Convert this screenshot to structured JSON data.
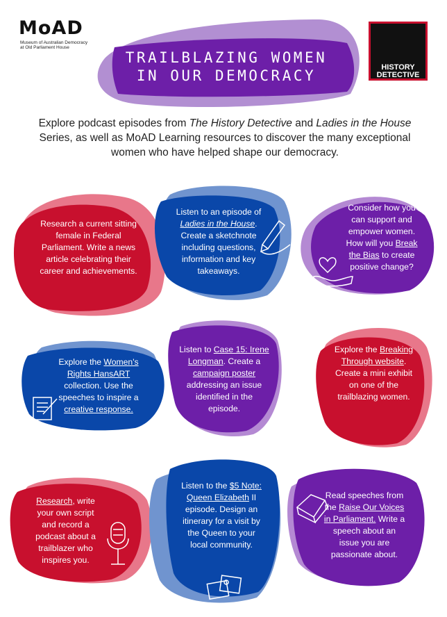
{
  "logo": {
    "wordmark": "MoAD",
    "subtitle_line1": "Museum of Australian Democracy",
    "subtitle_line2": "at Old Parliament House"
  },
  "badge": {
    "line1": "HISTORY",
    "line2": "DETECTIVE"
  },
  "title": {
    "line1": "TRAILBLAZING WOMEN",
    "line2": "IN OUR DEMOCRACY"
  },
  "intro": {
    "p1": "Explore podcast episodes from ",
    "series1": "The History Detective",
    "p2": " and ",
    "series2": "Ladies in the House",
    "p3": " Series, as well as MoAD Learning resources to discover the many exceptional women who have helped shape our democracy."
  },
  "cards": {
    "c1": {
      "text": "Research a current sitting female in Federal Parliament. Write a news article celebrating their career and achievements."
    },
    "c2": {
      "t1": "Listen to an episode of ",
      "link": "Ladies in the House",
      "t2": ". Create a sketchnote including  questions, information and key takeaways."
    },
    "c3": {
      "t1": "Consider how you can support and empower women. How will you ",
      "link": "Break the Bias",
      "t2": " to create positive change?"
    },
    "c4": {
      "t1": "Explore the ",
      "link1": "Women's Rights HansART",
      "t2": " collection. Use the speeches to inspire a ",
      "link2": "creative response."
    },
    "c5": {
      "t1": "Listen to ",
      "link1": "Case 15: Irene Longman",
      "t2": ". Create a ",
      "link2": "campaign poster",
      "t3": " addressing an issue identified in the episode."
    },
    "c6": {
      "t1": "Explore the ",
      "link": "Breaking Through website",
      "t2": ". Create a mini exhibit on one of the trailblazing women."
    },
    "c7": {
      "link": "Research",
      "t1": ", write your own script and record a podcast about a trailblazer who inspires you."
    },
    "c8": {
      "t1": "Listen to the ",
      "link": "$5 Note: Queen Elizabeth",
      "t2": " II episode. Design an itinerary for a visit by the Queen to your local community."
    },
    "c9": {
      "t1": "Read speeches from the ",
      "link": "Raise Our Voices in Parliament.",
      "t2": " Write a speech about an issue you are passionate about."
    }
  },
  "colors": {
    "red": "#c8102e",
    "pink": "#e2707f",
    "blue": "#0a47a9",
    "lightblue": "#6f95cf",
    "purple": "#6d1fa8",
    "lightpurple": "#b58bd0"
  },
  "icons": [
    "pencil-icon",
    "heart-hand-icon",
    "document-icon",
    "microphone-icon",
    "book-icon",
    "photos-icon"
  ]
}
